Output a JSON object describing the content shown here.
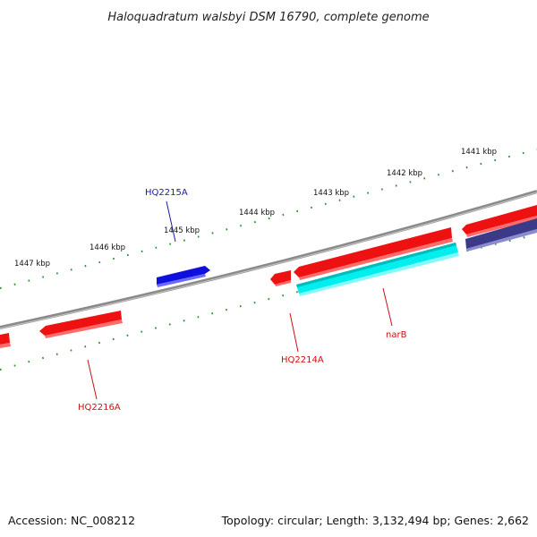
{
  "title": "Haloquadratum walsbyi DSM 16790, complete genome",
  "footer": {
    "accession": "Accession: NC_008212",
    "topology": "Topology: circular; Length: 3,132,494 bp; Genes: 2,662"
  },
  "ticks": [
    "1441 kbp",
    "1442 kbp",
    "1443 kbp",
    "1444 kbp",
    "1445 kbp",
    "1446 kbp",
    "1447 kbp"
  ],
  "genes": {
    "hq2215a": "HQ2215A",
    "hq2214a": "HQ2214A",
    "narb": "narB",
    "hq2216a": "HQ2216A"
  },
  "colors": {
    "backbone": "#888888",
    "tick_dots": "#2d8a2d",
    "gene_red": "#ee1111",
    "gene_blue": "#1010dd",
    "gene_cyan": "#00eeee",
    "gene_navy": "#3a3a88",
    "label_blue": "#1a1aaa",
    "label_red": "#cc1111"
  }
}
